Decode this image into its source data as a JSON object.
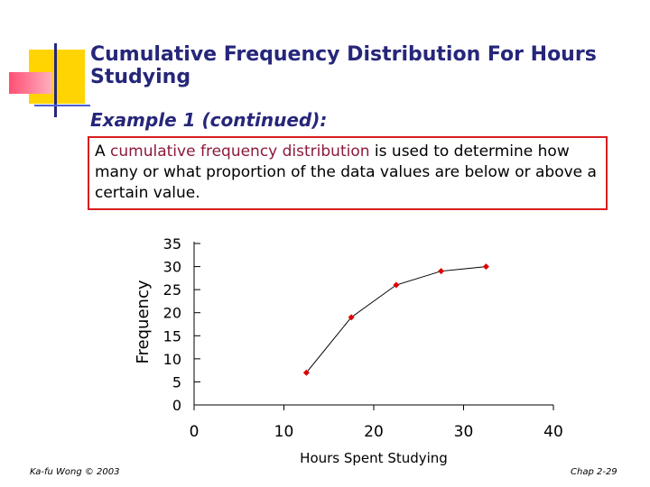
{
  "slide": {
    "title": "Cumulative Frequency Distribution For Hours Studying",
    "subtitle": "Example 1 (continued):",
    "callout": {
      "prefix": "A ",
      "highlight_1": "cumulative",
      "space": " ",
      "highlight_2": "frequency distribution",
      "suffix": " is used to determine how many or what proportion of the data values are below or above a certain value."
    },
    "footer_left": "Ka-fu Wong © 2003",
    "footer_right": "Chap 2-29"
  },
  "colors": {
    "title": "#26267a",
    "highlight": "#8b1a3a",
    "callout_border": "#d81e1e",
    "marker": "#e00000",
    "deco_yellow": "#ffd400",
    "deco_pink": "#ff6f8a",
    "deco_blue": "#4a5fd0"
  },
  "chart_data": {
    "type": "line",
    "xlabel": "Hours Spent Studying",
    "ylabel": "Frequency",
    "xlim": [
      0,
      40
    ],
    "ylim": [
      0,
      35
    ],
    "x_ticks": [
      0,
      10,
      20,
      30,
      40
    ],
    "y_ticks": [
      35,
      30,
      25,
      20,
      15,
      10,
      5,
      0
    ],
    "grid": false,
    "series": [
      {
        "x": [
          12.5,
          17.5,
          22.5,
          27.5,
          32.5
        ],
        "values": [
          7,
          19,
          26,
          29,
          30
        ]
      }
    ]
  }
}
